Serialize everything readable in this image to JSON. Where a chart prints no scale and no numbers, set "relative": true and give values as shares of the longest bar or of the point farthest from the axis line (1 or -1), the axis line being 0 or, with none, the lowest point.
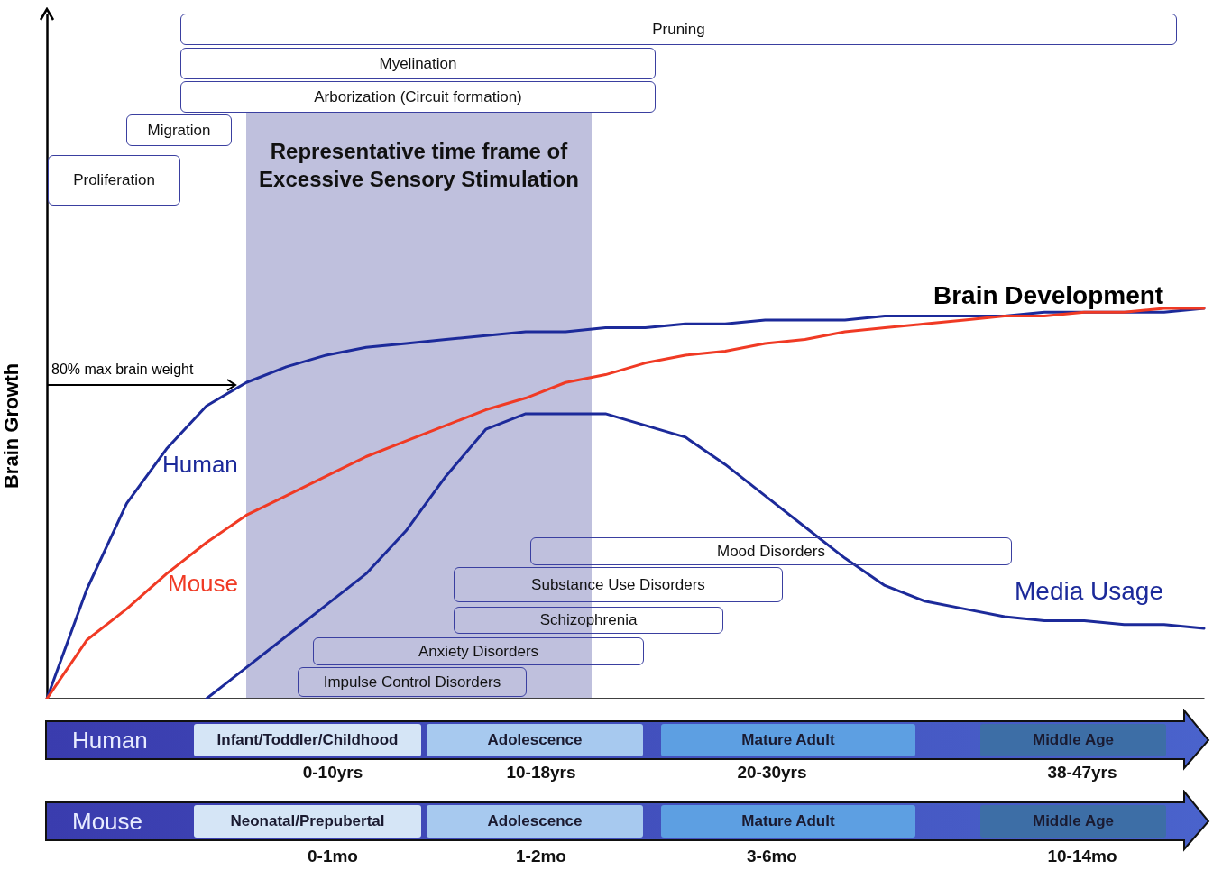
{
  "chart_data": {
    "type": "line",
    "relative": true,
    "ylabel": "Brain Growth",
    "categories": [
      null,
      null,
      null,
      null,
      null,
      null,
      null,
      null,
      null,
      null,
      null,
      null,
      null,
      null,
      null,
      null,
      null,
      null,
      null,
      null,
      null,
      null,
      null,
      null,
      null,
      null,
      null,
      null,
      null,
      null
    ],
    "series": [
      {
        "name": "Human",
        "color": "#1c2a9a",
        "values": [
          0,
          0.28,
          0.5,
          0.64,
          0.75,
          0.81,
          0.85,
          0.88,
          0.9,
          0.91,
          0.92,
          0.93,
          0.94,
          0.94,
          0.95,
          0.95,
          0.96,
          0.96,
          0.97,
          0.97,
          0.97,
          0.98,
          0.98,
          0.98,
          0.98,
          0.99,
          0.99,
          0.99,
          0.99,
          1
        ]
      },
      {
        "name": "Mouse",
        "color": "#f03a24",
        "values": [
          0,
          0.15,
          0.23,
          0.32,
          0.4,
          0.47,
          0.52,
          0.57,
          0.62,
          0.66,
          0.7,
          0.74,
          0.77,
          0.81,
          0.83,
          0.86,
          0.88,
          0.89,
          0.91,
          0.92,
          0.94,
          0.95,
          0.96,
          0.97,
          0.98,
          0.98,
          0.99,
          0.99,
          1,
          1
        ]
      },
      {
        "name": "Media Usage",
        "color": "#1c2a9a",
        "values": [
          null,
          null,
          null,
          null,
          0,
          0.08,
          0.16,
          0.24,
          0.32,
          0.43,
          0.57,
          0.69,
          0.73,
          0.73,
          0.73,
          0.7,
          0.67,
          0.6,
          0.52,
          0.44,
          0.36,
          0.29,
          0.25,
          0.23,
          0.21,
          0.2,
          0.2,
          0.19,
          0.19,
          0.18
        ]
      }
    ],
    "annotations": [
      "Pruning",
      "Myelination",
      "Arborization (Circuit formation)",
      "Migration",
      "Proliferation",
      "Brain Development",
      "Mood Disorders",
      "Substance Use Disorders",
      "Schizophrenia",
      "Anxiety Disorders",
      "Impulse Control Disorders",
      "80% max brain weight",
      "Human",
      "Infant/Toddler/Childhood",
      "Adolescence",
      "Mature Adult",
      "Middle Age",
      "0-10yrs",
      "10-18yrs",
      "20-30yrs",
      "38-47yrs",
      "Mouse",
      "Neonatal/Prepubertal",
      "Adolescence",
      "Mature Adult",
      "Middle Age",
      "0-1mo",
      "1-2mo",
      "3-6mo",
      "10-14mo",
      "Representative time frame of Excessive Sensory Stimulation"
    ]
  }
}
